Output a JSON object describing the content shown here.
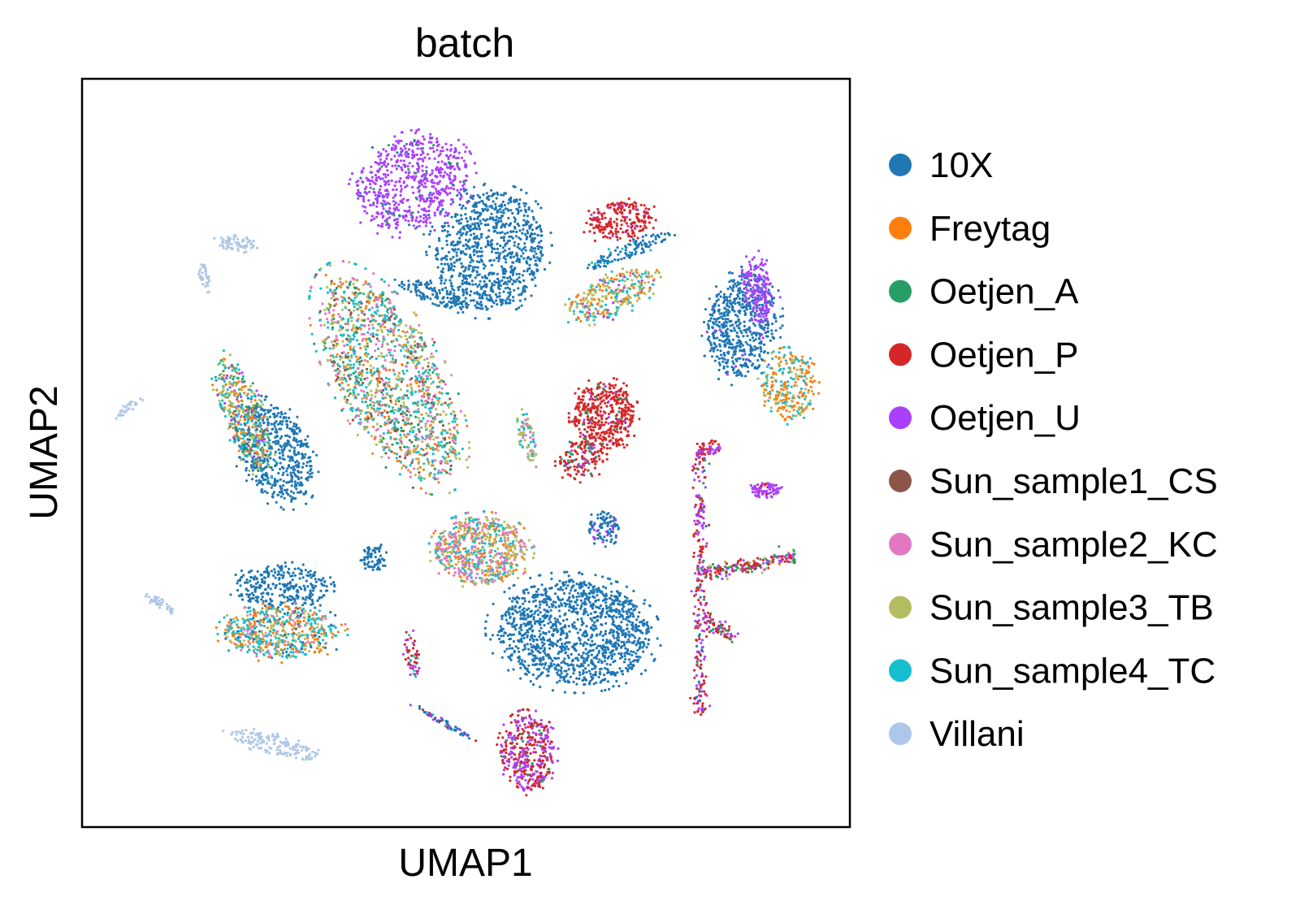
{
  "chart_data": {
    "type": "scatter",
    "title": "batch",
    "xlabel": "UMAP1",
    "ylabel": "UMAP2",
    "xlim": [
      0,
      100
    ],
    "ylim": [
      0,
      100
    ],
    "grid": false,
    "ticks": false,
    "legend_position": "right",
    "legend": [
      {
        "name": "10X",
        "color": "#1f77b4"
      },
      {
        "name": "Freytag",
        "color": "#ff7f0e"
      },
      {
        "name": "Oetjen_A",
        "color": "#279e68"
      },
      {
        "name": "Oetjen_P",
        "color": "#d62728"
      },
      {
        "name": "Oetjen_U",
        "color": "#aa40fc"
      },
      {
        "name": "Sun_sample1_CS",
        "color": "#8c564b"
      },
      {
        "name": "Sun_sample2_KC",
        "color": "#e377c2"
      },
      {
        "name": "Sun_sample3_TB",
        "color": "#b5bd61"
      },
      {
        "name": "Sun_sample4_TC",
        "color": "#17becf"
      },
      {
        "name": "Villani",
        "color": "#aec7e8"
      }
    ],
    "clusters": [
      {
        "id": "c10x-top",
        "cx": 53,
        "cy": 77,
        "rx": 7,
        "ry": 8,
        "n": 900,
        "rot": -20,
        "mix": [
          [
            0,
            1
          ]
        ]
      },
      {
        "id": "cOetU-top",
        "cx": 43,
        "cy": 86,
        "rx": 7.5,
        "ry": 6,
        "n": 650,
        "rot": 25,
        "mix": [
          [
            4,
            0.9
          ],
          [
            2,
            0.05
          ],
          [
            0,
            0.05
          ]
        ]
      },
      {
        "id": "c10x-band",
        "cx": 46,
        "cy": 71,
        "rx": 5,
        "ry": 1.2,
        "n": 120,
        "rot": -20,
        "mix": [
          [
            0,
            1
          ]
        ]
      },
      {
        "id": "cmixed-big",
        "cx": 40,
        "cy": 60,
        "rx": 6.5,
        "ry": 15,
        "n": 1500,
        "rot": 28,
        "mix": [
          [
            1,
            0.12
          ],
          [
            2,
            0.08
          ],
          [
            5,
            0.08
          ],
          [
            6,
            0.18
          ],
          [
            7,
            0.25
          ],
          [
            8,
            0.29
          ]
        ]
      },
      {
        "id": "cOetP-redtop",
        "cx": 70,
        "cy": 81,
        "rx": 4.5,
        "ry": 2.5,
        "n": 220,
        "rot": 10,
        "mix": [
          [
            3,
            0.9
          ],
          [
            4,
            0.1
          ]
        ]
      },
      {
        "id": "c10x-diagband",
        "cx": 71,
        "cy": 77,
        "rx": 6,
        "ry": 1.0,
        "n": 110,
        "rot": 22,
        "mix": [
          [
            0,
            0.9
          ],
          [
            8,
            0.1
          ]
        ]
      },
      {
        "id": "cmixed-leaf",
        "cx": 69,
        "cy": 71,
        "rx": 6,
        "ry": 2.6,
        "n": 300,
        "rot": 25,
        "mix": [
          [
            7,
            0.4
          ],
          [
            8,
            0.3
          ],
          [
            1,
            0.2
          ],
          [
            4,
            0.1
          ]
        ]
      },
      {
        "id": "c10x-right",
        "cx": 86,
        "cy": 67,
        "rx": 4.5,
        "ry": 7,
        "n": 600,
        "rot": -10,
        "mix": [
          [
            0,
            0.95
          ],
          [
            4,
            0.05
          ]
        ]
      },
      {
        "id": "cOetU-right",
        "cx": 88,
        "cy": 72,
        "rx": 1.8,
        "ry": 4.5,
        "n": 150,
        "rot": 5,
        "mix": [
          [
            4,
            1
          ]
        ]
      },
      {
        "id": "cfrey-right",
        "cx": 92,
        "cy": 59,
        "rx": 3.5,
        "ry": 4.5,
        "n": 280,
        "rot": 0,
        "mix": [
          [
            1,
            0.5
          ],
          [
            8,
            0.3
          ],
          [
            7,
            0.2
          ]
        ]
      },
      {
        "id": "cOetP-mid",
        "cx": 68,
        "cy": 55,
        "rx": 4,
        "ry": 4.5,
        "n": 450,
        "rot": 0,
        "mix": [
          [
            3,
            0.9
          ],
          [
            4,
            0.05
          ],
          [
            2,
            0.05
          ]
        ]
      },
      {
        "id": "cOetP-midlow",
        "cx": 65,
        "cy": 49,
        "rx": 3,
        "ry": 2.5,
        "n": 150,
        "rot": 20,
        "mix": [
          [
            3,
            0.7
          ],
          [
            2,
            0.2
          ],
          [
            4,
            0.1
          ]
        ]
      },
      {
        "id": "c10x-left",
        "cx": 25,
        "cy": 50,
        "rx": 4.5,
        "ry": 7,
        "n": 550,
        "rot": 25,
        "mix": [
          [
            0,
            1
          ]
        ]
      },
      {
        "id": "cmixed-left",
        "cx": 21,
        "cy": 55,
        "rx": 2.5,
        "ry": 8,
        "n": 400,
        "rot": 20,
        "mix": [
          [
            7,
            0.3
          ],
          [
            8,
            0.25
          ],
          [
            1,
            0.2
          ],
          [
            4,
            0.1
          ],
          [
            2,
            0.15
          ]
        ]
      },
      {
        "id": "cmixed-center",
        "cx": 52,
        "cy": 37,
        "rx": 6,
        "ry": 4.5,
        "n": 700,
        "rot": 0,
        "mix": [
          [
            6,
            0.3
          ],
          [
            7,
            0.3
          ],
          [
            8,
            0.25
          ],
          [
            1,
            0.15
          ]
        ]
      },
      {
        "id": "c10x-bigbottom",
        "cx": 64,
        "cy": 26,
        "rx": 10,
        "ry": 7,
        "n": 1300,
        "rot": -5,
        "mix": [
          [
            0,
            1
          ]
        ]
      },
      {
        "id": "c10x-bottomleft",
        "cx": 26,
        "cy": 32,
        "rx": 6,
        "ry": 3,
        "n": 300,
        "rot": 0,
        "mix": [
          [
            0,
            1
          ]
        ]
      },
      {
        "id": "cmixed-bottomleft",
        "cx": 26,
        "cy": 26,
        "rx": 7.5,
        "ry": 3.5,
        "n": 600,
        "rot": 0,
        "mix": [
          [
            8,
            0.35
          ],
          [
            1,
            0.25
          ],
          [
            7,
            0.2
          ],
          [
            6,
            0.1
          ],
          [
            0,
            0.1
          ]
        ]
      },
      {
        "id": "cOetU-bottom",
        "cx": 58,
        "cy": 10,
        "rx": 3.5,
        "ry": 5,
        "n": 420,
        "rot": 0,
        "mix": [
          [
            4,
            0.5
          ],
          [
            3,
            0.45
          ],
          [
            2,
            0.05
          ]
        ]
      },
      {
        "id": "c10x-smallmid",
        "cx": 68,
        "cy": 40,
        "rx": 2,
        "ry": 2.2,
        "n": 100,
        "rot": 0,
        "mix": [
          [
            0,
            0.85
          ],
          [
            4,
            0.15
          ]
        ]
      },
      {
        "id": "c10x-small2",
        "cx": 38,
        "cy": 36,
        "rx": 1.5,
        "ry": 1.8,
        "n": 70,
        "rot": 0,
        "mix": [
          [
            0,
            1
          ]
        ]
      },
      {
        "id": "cOetU-small3",
        "cx": 89,
        "cy": 45,
        "rx": 2,
        "ry": 1,
        "n": 80,
        "rot": 0,
        "mix": [
          [
            4,
            0.9
          ],
          [
            3,
            0.1
          ]
        ]
      },
      {
        "id": "cmixed-small4",
        "cx": 58,
        "cy": 52,
        "rx": 1,
        "ry": 3.5,
        "n": 80,
        "rot": 15,
        "mix": [
          [
            7,
            0.4
          ],
          [
            8,
            0.3
          ],
          [
            6,
            0.3
          ]
        ]
      },
      {
        "id": "cOetU-small5",
        "cx": 43,
        "cy": 23,
        "rx": 1,
        "ry": 3,
        "n": 50,
        "rot": 5,
        "mix": [
          [
            3,
            0.5
          ],
          [
            4,
            0.3
          ],
          [
            8,
            0.2
          ]
        ]
      },
      {
        "id": "cVillani-1",
        "cx": 20,
        "cy": 78,
        "rx": 2.5,
        "ry": 1,
        "n": 70,
        "rot": -10,
        "mix": [
          [
            9,
            1
          ]
        ]
      },
      {
        "id": "cVillani-2",
        "cx": 16,
        "cy": 73,
        "rx": 0.6,
        "ry": 2.5,
        "n": 40,
        "rot": 10,
        "mix": [
          [
            9,
            1
          ]
        ]
      },
      {
        "id": "cVillani-3",
        "cx": 6,
        "cy": 56,
        "rx": 2,
        "ry": 0.5,
        "n": 30,
        "rot": 35,
        "mix": [
          [
            9,
            1
          ]
        ]
      },
      {
        "id": "cVillani-4",
        "cx": 10,
        "cy": 30,
        "rx": 2.5,
        "ry": 0.6,
        "n": 40,
        "rot": -35,
        "mix": [
          [
            9,
            1
          ]
        ]
      },
      {
        "id": "cVillani-5",
        "cx": 25,
        "cy": 11,
        "rx": 6,
        "ry": 1.3,
        "n": 150,
        "rot": -15,
        "mix": [
          [
            9,
            1
          ]
        ]
      },
      {
        "id": "cmixed-line",
        "cx": 47,
        "cy": 14,
        "rx": 4.5,
        "ry": 0.4,
        "n": 60,
        "rot": -30,
        "mix": [
          [
            0,
            0.4
          ],
          [
            4,
            0.3
          ],
          [
            3,
            0.2
          ],
          [
            8,
            0.1
          ]
        ]
      }
    ],
    "branches": [
      {
        "id": "branch-vertical",
        "x1": 80.5,
        "y1": 50,
        "x2": 80.5,
        "y2": 15,
        "n": 260,
        "spread": 0.8,
        "mix": [
          [
            3,
            0.45
          ],
          [
            4,
            0.4
          ],
          [
            2,
            0.1
          ],
          [
            0,
            0.05
          ]
        ]
      },
      {
        "id": "branch-top",
        "x1": 80,
        "y1": 50,
        "x2": 83,
        "y2": 51,
        "n": 60,
        "spread": 0.8,
        "mix": [
          [
            3,
            0.6
          ],
          [
            4,
            0.4
          ]
        ]
      },
      {
        "id": "branch-right",
        "x1": 81,
        "y1": 34,
        "x2": 93,
        "y2": 36,
        "n": 200,
        "spread": 0.8,
        "mix": [
          [
            3,
            0.4
          ],
          [
            4,
            0.3
          ],
          [
            2,
            0.2
          ],
          [
            7,
            0.1
          ]
        ]
      },
      {
        "id": "branch-mid",
        "x1": 81,
        "y1": 28,
        "x2": 85,
        "y2": 25,
        "n": 70,
        "spread": 0.9,
        "mix": [
          [
            3,
            0.5
          ],
          [
            4,
            0.3
          ],
          [
            2,
            0.2
          ]
        ]
      }
    ]
  }
}
